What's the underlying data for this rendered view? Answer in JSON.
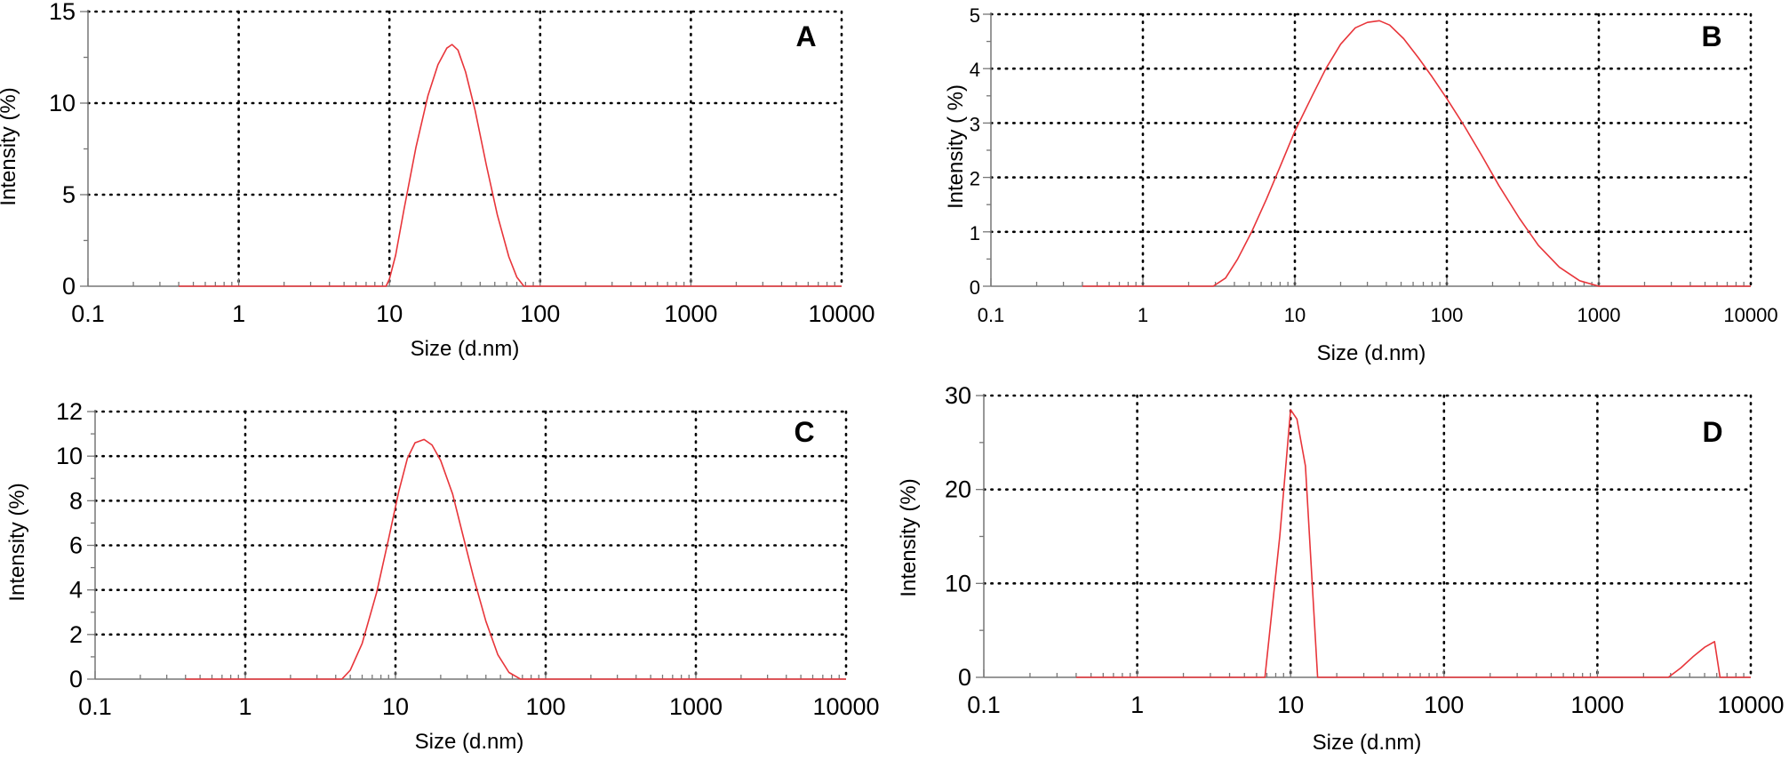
{
  "chart_data": [
    {
      "type": "line",
      "panel_label": "A",
      "xlabel": "Size (d.nm)",
      "ylabel": "Intensity (%)",
      "xscale": "log",
      "xlim": [
        0.1,
        10000
      ],
      "ylim": [
        0,
        15
      ],
      "x_ticks": [
        "0.1",
        "1",
        "10",
        "100",
        "1000",
        "10000"
      ],
      "y_ticks": [
        "0",
        "5",
        "10",
        "15"
      ],
      "grid": true,
      "series": [
        {
          "x": [
            0.4,
            9.5,
            10,
            11,
            12.5,
            15,
            18,
            21,
            24,
            26,
            28.5,
            32,
            37,
            44,
            52,
            62,
            70,
            78,
            10000
          ],
          "y": [
            0,
            0,
            0.4,
            1.7,
            4.2,
            7.6,
            10.4,
            12.1,
            13.0,
            13.2,
            12.9,
            11.7,
            9.6,
            6.6,
            3.9,
            1.6,
            0.5,
            0,
            0
          ]
        }
      ]
    },
    {
      "type": "line",
      "panel_label": "B",
      "xlabel": "Size (d.nm)",
      "ylabel": "Intensity ( %)",
      "xscale": "log",
      "xlim": [
        0.1,
        10000
      ],
      "ylim": [
        0,
        5
      ],
      "x_ticks": [
        "0.1",
        "1",
        "10",
        "100",
        "1000",
        "10000"
      ],
      "y_ticks": [
        "0",
        "1",
        "2",
        "3",
        "4",
        "5"
      ],
      "grid": true,
      "series": [
        {
          "x": [
            0.4,
            2.9,
            3.5,
            4.2,
            5.2,
            6.5,
            8,
            10,
            13,
            16,
            20,
            25,
            30,
            36,
            42,
            52,
            65,
            80,
            100,
            130,
            170,
            220,
            300,
            400,
            550,
            750,
            1000,
            10000
          ],
          "y": [
            0,
            0,
            0.15,
            0.5,
            1.0,
            1.6,
            2.2,
            2.85,
            3.5,
            4.0,
            4.45,
            4.75,
            4.85,
            4.88,
            4.8,
            4.55,
            4.2,
            3.85,
            3.45,
            2.95,
            2.4,
            1.85,
            1.25,
            0.75,
            0.35,
            0.1,
            0,
            0
          ]
        }
      ]
    },
    {
      "type": "line",
      "panel_label": "C",
      "xlabel": "Size (d.nm)",
      "ylabel": "Intensity (%)",
      "xscale": "log",
      "xlim": [
        0.1,
        10000
      ],
      "ylim": [
        0,
        12
      ],
      "x_ticks": [
        "0.1",
        "1",
        "10",
        "100",
        "1000",
        "10000"
      ],
      "y_ticks": [
        "0",
        "2",
        "4",
        "6",
        "8",
        "10",
        "12"
      ],
      "grid": true,
      "series": [
        {
          "x": [
            0.4,
            4.4,
            5,
            6,
            7.5,
            9,
            10.5,
            12,
            13.5,
            15.5,
            17.5,
            20,
            24,
            28,
            33,
            40,
            48,
            57,
            68,
            10000
          ],
          "y": [
            0,
            0,
            0.4,
            1.6,
            3.9,
            6.3,
            8.4,
            9.9,
            10.6,
            10.75,
            10.5,
            9.8,
            8.3,
            6.5,
            4.6,
            2.6,
            1.1,
            0.3,
            0,
            0
          ]
        }
      ]
    },
    {
      "type": "line",
      "panel_label": "D",
      "xlabel": "Size (d.nm)",
      "ylabel": "Intensity (%)",
      "xscale": "log",
      "xlim": [
        0.1,
        10000
      ],
      "ylim": [
        0,
        30
      ],
      "x_ticks": [
        "0.1",
        "1",
        "10",
        "100",
        "1000",
        "10000"
      ],
      "y_ticks": [
        "0",
        "10",
        "20",
        "30"
      ],
      "grid": true,
      "series": [
        {
          "x": [
            0.4,
            6.8,
            8.5,
            10,
            11,
            12.5,
            15,
            2900,
            3500,
            4200,
            5000,
            5800,
            6300,
            10000
          ],
          "y": [
            0,
            0,
            15,
            28.5,
            27.5,
            22.5,
            0,
            0,
            1.0,
            2.2,
            3.2,
            3.8,
            0,
            0
          ]
        }
      ]
    }
  ]
}
